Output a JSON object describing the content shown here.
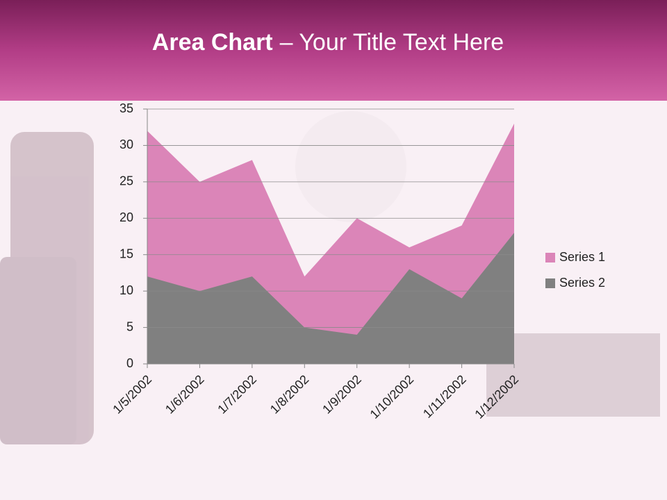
{
  "chart_data": {
    "type": "area",
    "title_bold": "Area Chart",
    "title": "– Your Title Text Here",
    "categories": [
      "1/5/2002",
      "1/6/2002",
      "1/7/2002",
      "1/8/2002",
      "1/9/2002",
      "1/10/2002",
      "1/11/2002",
      "1/12/2002"
    ],
    "series": [
      {
        "name": "Series 1",
        "color": "#db85b8",
        "values": [
          32,
          25,
          28,
          12,
          20,
          16,
          19,
          33
        ]
      },
      {
        "name": "Series 2",
        "color": "#808080",
        "values": [
          12,
          10,
          12,
          5,
          4,
          13,
          9,
          18
        ]
      }
    ],
    "ylim": [
      0,
      35
    ],
    "yticks": [
      0,
      5,
      10,
      15,
      20,
      25,
      30,
      35
    ],
    "grid": true,
    "legend": "right"
  }
}
